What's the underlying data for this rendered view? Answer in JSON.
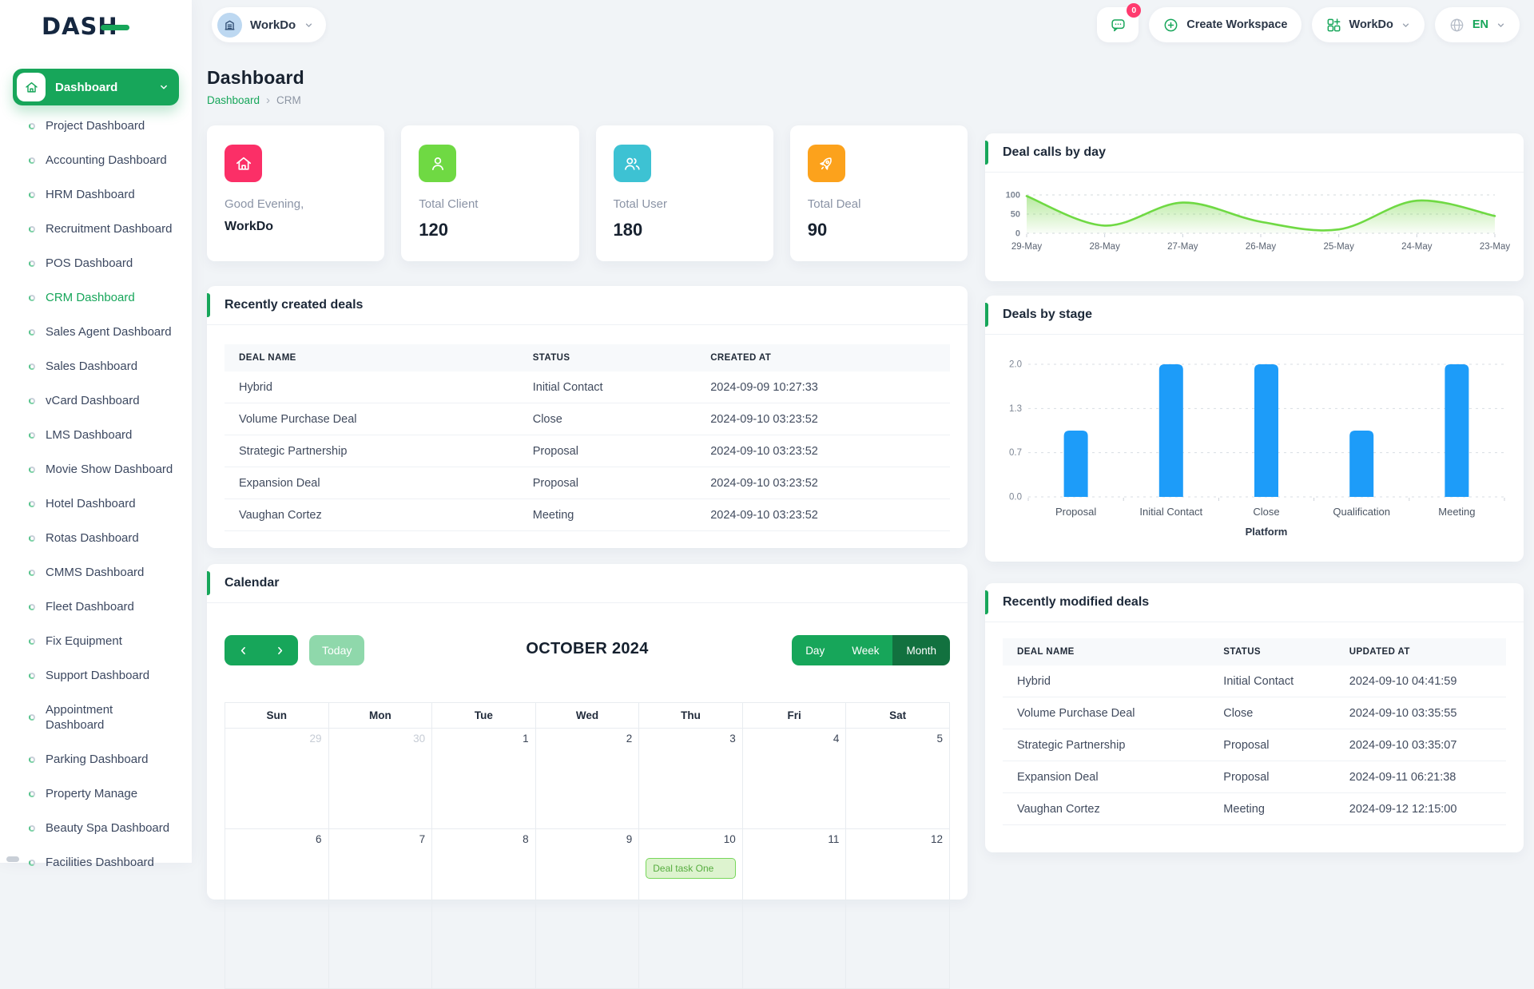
{
  "theme": {
    "primary": "#17a65a",
    "primary_dark": "#12713f",
    "primary_pale": "#8fd8ab",
    "badge": "#ff3a6e",
    "page_bg": "#f1f4f7"
  },
  "brand": {
    "logo_text": "DASH"
  },
  "topbar": {
    "workspace_switcher": {
      "label": "WorkDo",
      "icon": "building-icon"
    },
    "messages": {
      "icon": "chat-icon",
      "badge": "0"
    },
    "create_workspace": {
      "label": "Create Workspace",
      "icon": "plus-circle-icon"
    },
    "workspace_menu": {
      "label": "WorkDo",
      "icon": "grid-plus-icon"
    },
    "language": {
      "label": "EN",
      "icon": "globe-icon"
    }
  },
  "sidebar": {
    "primary_item": {
      "label": "Dashboard",
      "icon": "home-icon"
    },
    "items": [
      {
        "label": "Project Dashboard"
      },
      {
        "label": "Accounting Dashboard"
      },
      {
        "label": "HRM Dashboard"
      },
      {
        "label": "Recruitment Dashboard"
      },
      {
        "label": "POS Dashboard"
      },
      {
        "label": "CRM Dashboard",
        "active": true
      },
      {
        "label": "Sales Agent Dashboard"
      },
      {
        "label": "Sales Dashboard"
      },
      {
        "label": "vCard Dashboard"
      },
      {
        "label": "LMS Dashboard"
      },
      {
        "label": "Movie Show Dashboard"
      },
      {
        "label": "Hotel Dashboard"
      },
      {
        "label": "Rotas Dashboard"
      },
      {
        "label": "CMMS Dashboard"
      },
      {
        "label": "Fleet Dashboard"
      },
      {
        "label": "Fix Equipment"
      },
      {
        "label": "Support Dashboard"
      },
      {
        "label": "Appointment Dashboard",
        "wrap": true
      },
      {
        "label": "Parking Dashboard"
      },
      {
        "label": "Property Manage"
      },
      {
        "label": "Beauty Spa Dashboard"
      },
      {
        "label": "Facilities Dashboard"
      }
    ]
  },
  "page": {
    "title": "Dashboard",
    "breadcrumb": [
      "Dashboard",
      "CRM"
    ],
    "breadcrumb_separator": "›"
  },
  "stats": [
    {
      "label": "Good Evening,",
      "value": "WorkDo",
      "icon": "home-icon",
      "color": "#fb2f67",
      "small_value": true
    },
    {
      "label": "Total Client",
      "value": "120",
      "icon": "user-icon",
      "color": "#6fd943"
    },
    {
      "label": "Total User",
      "value": "180",
      "icon": "users-icon",
      "color": "#3dc2d3"
    },
    {
      "label": "Total Deal",
      "value": "90",
      "icon": "rocket-icon",
      "color": "#fca21c"
    }
  ],
  "recently_created": {
    "title": "Recently created deals",
    "columns": [
      "DEAL NAME",
      "STATUS",
      "CREATED AT"
    ],
    "rows": [
      [
        "Hybrid",
        "Initial Contact",
        "2024-09-09 10:27:33"
      ],
      [
        "Volume Purchase Deal",
        "Close",
        "2024-09-10 03:23:52"
      ],
      [
        "Strategic Partnership",
        "Proposal",
        "2024-09-10 03:23:52"
      ],
      [
        "Expansion Deal",
        "Proposal",
        "2024-09-10 03:23:52"
      ],
      [
        "Vaughan Cortez",
        "Meeting",
        "2024-09-10 03:23:52"
      ]
    ]
  },
  "recently_modified": {
    "title": "Recently modified deals",
    "columns": [
      "DEAL NAME",
      "STATUS",
      "UPDATED AT"
    ],
    "rows": [
      [
        "Hybrid",
        "Initial Contact",
        "2024-09-10 04:41:59"
      ],
      [
        "Volume Purchase Deal",
        "Close",
        "2024-09-10 03:35:55"
      ],
      [
        "Strategic Partnership",
        "Proposal",
        "2024-09-10 03:35:07"
      ],
      [
        "Expansion Deal",
        "Proposal",
        "2024-09-11 06:21:38"
      ],
      [
        "Vaughan Cortez",
        "Meeting",
        "2024-09-12 12:15:00"
      ]
    ]
  },
  "calendar": {
    "title": "Calendar",
    "today_label": "Today",
    "month_title": "OCTOBER 2024",
    "views": [
      "Day",
      "Week",
      "Month"
    ],
    "active_view": "Month",
    "day_headers": [
      "Sun",
      "Mon",
      "Tue",
      "Wed",
      "Thu",
      "Fri",
      "Sat"
    ],
    "weeks": [
      [
        {
          "day": 29,
          "muted": true
        },
        {
          "day": 30,
          "muted": true
        },
        {
          "day": 1
        },
        {
          "day": 2
        },
        {
          "day": 3
        },
        {
          "day": 4
        },
        {
          "day": 5
        }
      ],
      [
        {
          "day": 6
        },
        {
          "day": 7
        },
        {
          "day": 8
        },
        {
          "day": 9
        },
        {
          "day": 10,
          "event": "Deal task One"
        },
        {
          "day": 11
        },
        {
          "day": 12
        }
      ]
    ],
    "event_colors": {
      "bg": "#ddf3cf",
      "border": "#77d65a",
      "text": "#56ad3f"
    }
  },
  "chart_data": [
    {
      "type": "area",
      "title": "Deal calls by day",
      "x": [
        "29-May",
        "28-May",
        "27-May",
        "26-May",
        "25-May",
        "24-May",
        "23-May"
      ],
      "series": [
        {
          "name": "Deal calls",
          "values": [
            97,
            20,
            80,
            30,
            10,
            85,
            45
          ]
        }
      ],
      "yticks": [
        0,
        50,
        100
      ],
      "ylim": [
        0,
        100
      ],
      "grid": "dashed-horizontal",
      "legend": false,
      "line_color": "#6fd943",
      "fill_color": "#7ed854"
    },
    {
      "type": "bar",
      "title": "Deals by stage",
      "categories": [
        "Proposal",
        "Initial Contact",
        "Close",
        "Qualification",
        "Meeting"
      ],
      "values": [
        1,
        2,
        2,
        1,
        2
      ],
      "xlabel": "Platform",
      "ylabel": "",
      "ytick_labels": [
        "0.0",
        "0.7",
        "1.3",
        "2.0"
      ],
      "ylim": [
        0,
        2
      ],
      "grid": "dashed-horizontal",
      "bar_color": "#1d9cf9"
    }
  ]
}
